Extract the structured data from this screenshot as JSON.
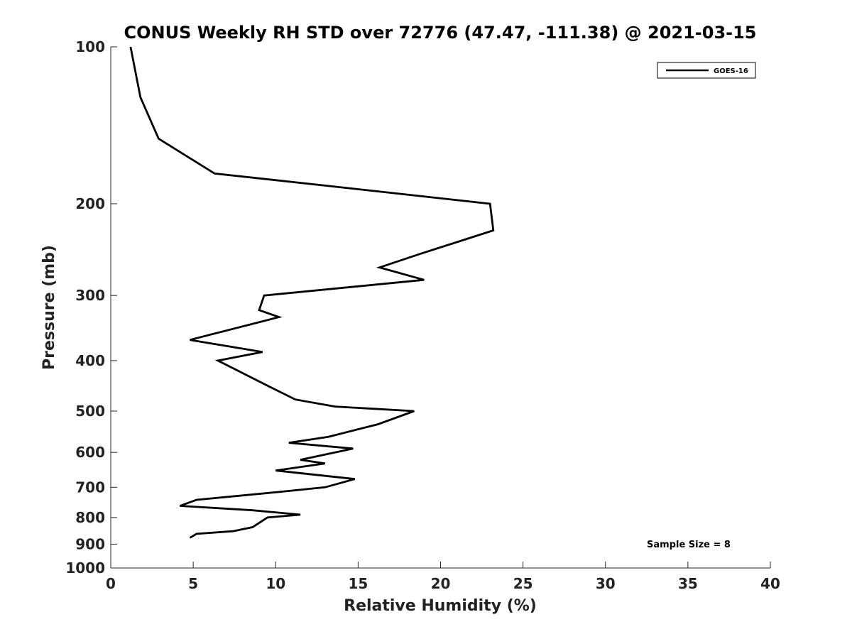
{
  "chart_data": {
    "type": "line",
    "title": "CONUS Weekly RH STD over 72776 (47.47, -111.38) @ 2021-03-15",
    "xlabel": "Relative Humidity (%)",
    "ylabel": "Pressure (mb)",
    "xlim": [
      0,
      40
    ],
    "ylim": [
      100,
      1000
    ],
    "yscale": "log",
    "y_reversed": true,
    "grid": false,
    "legend_position": "top-right",
    "x_ticks": [
      "0",
      "5",
      "10",
      "15",
      "20",
      "25",
      "30",
      "35",
      "40"
    ],
    "y_ticks": [
      "100",
      "200",
      "300",
      "400",
      "500",
      "600",
      "700",
      "800",
      "900",
      "1000"
    ],
    "series": [
      {
        "name": "GOES-16",
        "color": "#000000",
        "x": [
          1.2,
          1.8,
          2.9,
          6.3,
          13.3,
          23.0,
          23.2,
          18.7,
          16.3,
          19.0,
          9.3,
          9.0,
          10.2,
          4.8,
          9.2,
          6.5,
          9.7,
          11.2,
          13.6,
          18.4,
          16.2,
          13.2,
          10.8,
          14.7,
          11.5,
          13.0,
          10.0,
          14.8,
          13.0,
          10.1,
          5.2,
          4.2,
          8.6,
          11.5,
          9.5,
          8.6,
          7.4,
          5.2,
          4.8
        ],
        "y": [
          100,
          125,
          150,
          175,
          185,
          200,
          225,
          250,
          265,
          280,
          300,
          320,
          330,
          365,
          385,
          400,
          450,
          475,
          490,
          500,
          530,
          560,
          575,
          590,
          620,
          630,
          650,
          675,
          700,
          715,
          740,
          760,
          775,
          790,
          800,
          835,
          850,
          860,
          875
        ]
      }
    ],
    "annotations": [
      "Sample Size = 8"
    ]
  }
}
